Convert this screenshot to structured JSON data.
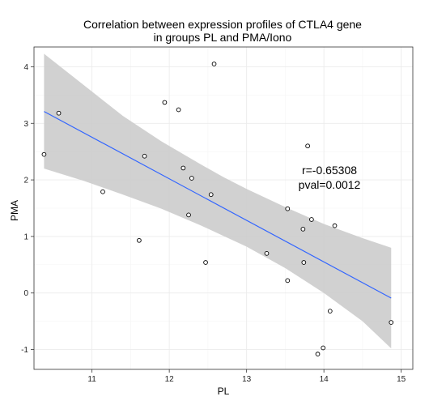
{
  "chart_data": {
    "type": "scatter",
    "title_lines": [
      "Correlation between expression profiles of CTLA4 gene",
      "in groups PL and PMA/Iono"
    ],
    "xlabel": "PL",
    "ylabel": "PMA",
    "xlim": [
      10.25,
      15.15
    ],
    "ylim": [
      -1.35,
      4.35
    ],
    "x_ticks": [
      11,
      12,
      13,
      14,
      15
    ],
    "y_ticks": [
      -1,
      0,
      1,
      2,
      3,
      4
    ],
    "grid": true,
    "points": [
      {
        "x": 10.38,
        "y": 2.45
      },
      {
        "x": 10.57,
        "y": 3.18
      },
      {
        "x": 11.14,
        "y": 1.79
      },
      {
        "x": 11.61,
        "y": 0.93
      },
      {
        "x": 11.68,
        "y": 2.42
      },
      {
        "x": 11.94,
        "y": 3.37
      },
      {
        "x": 12.12,
        "y": 3.24
      },
      {
        "x": 12.18,
        "y": 2.21
      },
      {
        "x": 12.25,
        "y": 1.38
      },
      {
        "x": 12.29,
        "y": 2.03
      },
      {
        "x": 12.47,
        "y": 0.54
      },
      {
        "x": 12.54,
        "y": 1.74
      },
      {
        "x": 12.58,
        "y": 4.05
      },
      {
        "x": 13.26,
        "y": 0.7
      },
      {
        "x": 13.53,
        "y": 1.49
      },
      {
        "x": 13.53,
        "y": 0.22
      },
      {
        "x": 13.73,
        "y": 1.13
      },
      {
        "x": 13.74,
        "y": 0.54
      },
      {
        "x": 13.79,
        "y": 2.6
      },
      {
        "x": 13.84,
        "y": 1.3
      },
      {
        "x": 13.92,
        "y": -1.08
      },
      {
        "x": 13.99,
        "y": -0.97
      },
      {
        "x": 14.08,
        "y": -0.32
      },
      {
        "x": 14.14,
        "y": 1.19
      },
      {
        "x": 14.87,
        "y": -0.52
      }
    ],
    "fit_line": {
      "x": [
        10.38,
        14.87
      ],
      "y": [
        3.21,
        -0.09
      ],
      "color": "#3366ff"
    },
    "confidence_band": {
      "x": [
        10.38,
        10.9,
        11.4,
        11.9,
        12.4,
        12.7,
        13.0,
        13.5,
        14.0,
        14.5,
        14.87
      ],
      "upper": [
        4.23,
        3.67,
        3.13,
        2.68,
        2.28,
        2.05,
        1.84,
        1.52,
        1.22,
        0.97,
        0.8
      ],
      "lower": [
        2.2,
        1.98,
        1.74,
        1.49,
        1.2,
        1.01,
        0.82,
        0.44,
        0.0,
        -0.5,
        -0.98
      ],
      "color": "#cccccc"
    },
    "annotations": [
      "r=-0.65308",
      "pval=0.0012"
    ],
    "colors": {
      "panel": "#ffffff",
      "grid_major": "#ebebeb",
      "grid_minor": "#f5f5f5",
      "border": "#333333",
      "points": "#000000"
    }
  }
}
